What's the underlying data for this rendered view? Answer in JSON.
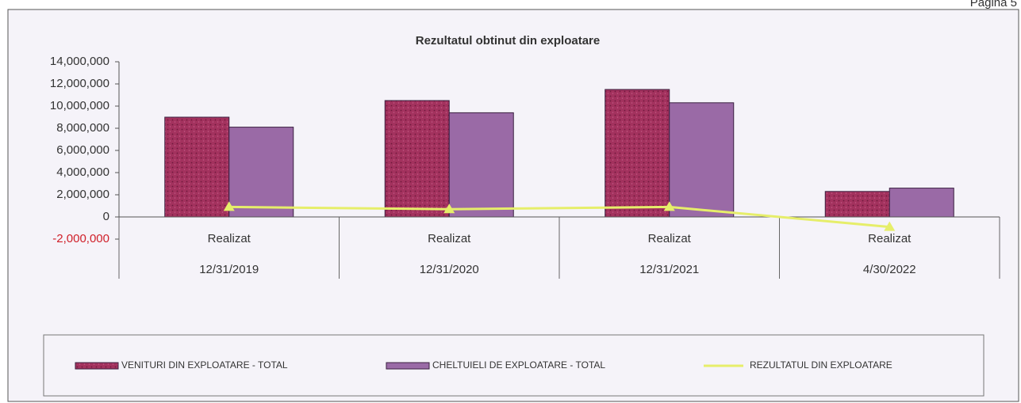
{
  "page_header": "Pagina 5",
  "chart_data": {
    "type": "bar",
    "title": "Rezultatul obtinut din exploatare",
    "categories": [
      "12/31/2019",
      "12/31/2020",
      "12/31/2021",
      "4/30/2022"
    ],
    "subcategories": [
      "Realizat",
      "Realizat",
      "Realizat",
      "Realizat"
    ],
    "series": [
      {
        "name": "VENITURI DIN EXPLOATARE - TOTAL",
        "color": "#a3325e",
        "type": "bar",
        "values": [
          9000000,
          10500000,
          11500000,
          2300000
        ]
      },
      {
        "name": "CHELTUIELI DE EXPLOATARE - TOTAL",
        "color": "#9a6aa6",
        "type": "bar",
        "values": [
          8100000,
          9400000,
          10300000,
          2600000
        ]
      },
      {
        "name": "REZULTATUL DIN EXPLOATARE",
        "color": "#e6ee6a",
        "type": "line",
        "values": [
          900000,
          700000,
          900000,
          -900000
        ]
      }
    ],
    "ylim": [
      -2000000,
      14000000
    ],
    "yticks": [
      {
        "value": -2000000,
        "label": "-2,000,000"
      },
      0,
      {
        "value": 2000000,
        "label": "2,000,000"
      },
      {
        "value": 4000000,
        "label": "4,000,000"
      },
      {
        "value": 6000000,
        "label": "6,000,000"
      },
      {
        "value": 8000000,
        "label": "8,000,000"
      },
      {
        "value": 10000000,
        "label": "10,000,000"
      },
      {
        "value": 12000000,
        "label": "12,000,000"
      },
      {
        "value": 14000000,
        "label": "14,000,000"
      }
    ],
    "negative_tick_color": "#d0202a",
    "legend": "bottom"
  }
}
